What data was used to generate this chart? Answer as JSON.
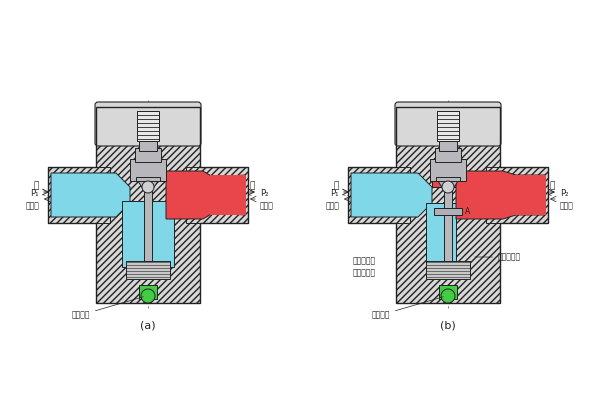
{
  "bg_color": "#ffffff",
  "body_fill": "#d8d8d8",
  "cyan_fill": "#7fd7e8",
  "red_fill": "#e8464a",
  "green_fill": "#44cc44",
  "metal": "#b8b8bc",
  "line_color": "#222222",
  "label_a": "(a)",
  "label_b": "(b)",
  "text_jin_a": "进",
  "text_chu_a": "出",
  "text_fxchu_a": "反向出",
  "text_fxjin_a": "反向进",
  "text_P1_a": "P₁",
  "text_P2_a": "P₂",
  "text_ctrl_a": "控制油口",
  "text_jin_b": "进",
  "text_chu_b": "出",
  "text_fxchu_b": "反向出",
  "text_fxjin_b": "反向进",
  "text_P1_b": "P₁",
  "text_P2_b": "P₂",
  "text_ctrl_b": "控制油口",
  "text_note_b": "打小孔后可\n成为内泄式",
  "text_drain_b": "通外泄油口",
  "text_A_b": "A",
  "figsize": [
    6.0,
    4.0
  ],
  "dpi": 100
}
